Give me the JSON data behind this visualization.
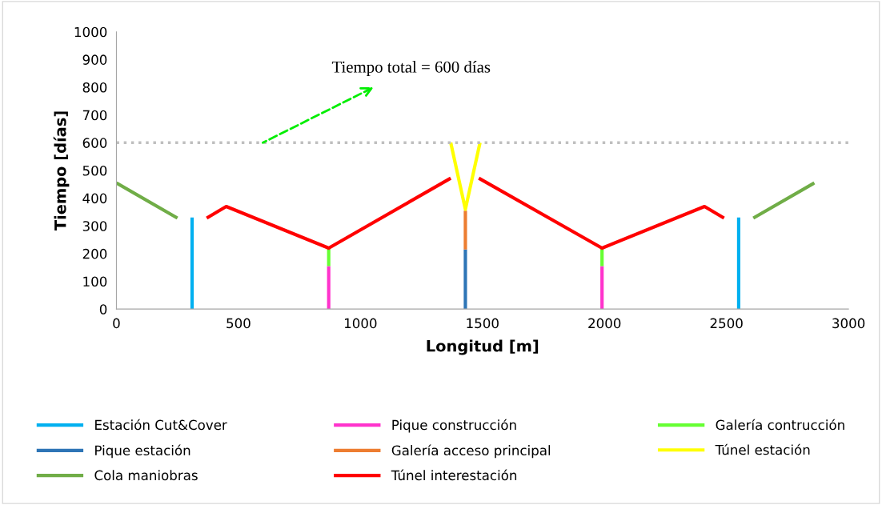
{
  "chart_data": {
    "type": "line",
    "xlabel": "Longitud [m]",
    "ylabel": "Tiempo [días]",
    "xlim": [
      0,
      3000
    ],
    "xticks": [
      0,
      500,
      1000,
      1500,
      2000,
      2500,
      3000
    ],
    "ylim": [
      0,
      1000
    ],
    "yticks": [
      0,
      100,
      200,
      300,
      400,
      500,
      600,
      700,
      800,
      900,
      1000
    ],
    "grid": false,
    "legend": "bottom",
    "marker": "none",
    "line_style": "solid",
    "series": [
      {
        "name": "Estación Cut&Cover",
        "color": "#00b0f0",
        "x": [
          310,
          310,
          1430,
          2550,
          2550
        ],
        "values": [
          0,
          330,
          null,
          0,
          330
        ]
      },
      {
        "name": "Pique construcción",
        "color": "#ff33cc",
        "x": [
          870,
          870,
          1430,
          1990,
          1990
        ],
        "values": [
          0,
          155,
          null,
          0,
          155
        ]
      },
      {
        "name": "Galería contrucción",
        "color": "#66ff33",
        "x": [
          870,
          870,
          1430,
          1990,
          1990
        ],
        "values": [
          155,
          220,
          null,
          155,
          220
        ]
      },
      {
        "name": "Pique estación",
        "color": "#2e75b6",
        "x": [
          1430,
          1430
        ],
        "values": [
          0,
          215
        ]
      },
      {
        "name": "Galería acceso principal",
        "color": "#ed7d31",
        "x": [
          1430,
          1430
        ],
        "values": [
          215,
          355
        ]
      },
      {
        "name": "Túnel estación",
        "color": "#ffff00",
        "x": [
          1370,
          1430,
          1490
        ],
        "values": [
          600,
          360,
          600
        ]
      },
      {
        "name": "Cola maniobras",
        "color": "#70ad47",
        "x": [
          0,
          250,
          1430,
          2610,
          2860
        ],
        "values": [
          455,
          328,
          null,
          328,
          455
        ]
      },
      {
        "name": "Túnel interestación",
        "color": "#ff0000",
        "x": [
          370,
          450,
          870,
          1370,
          1430,
          1485,
          1990,
          2410,
          2490
        ],
        "values": [
          328,
          370,
          220,
          472,
          null,
          472,
          220,
          370,
          328
        ]
      }
    ],
    "ref_lines": [
      {
        "axis": "y",
        "value": 600,
        "label": null,
        "color": "#bfbfbf",
        "line_style": "dotted"
      }
    ],
    "annotations": [
      {
        "text": "Tiempo total = 600 días",
        "x": 600,
        "y": 600
      }
    ]
  }
}
